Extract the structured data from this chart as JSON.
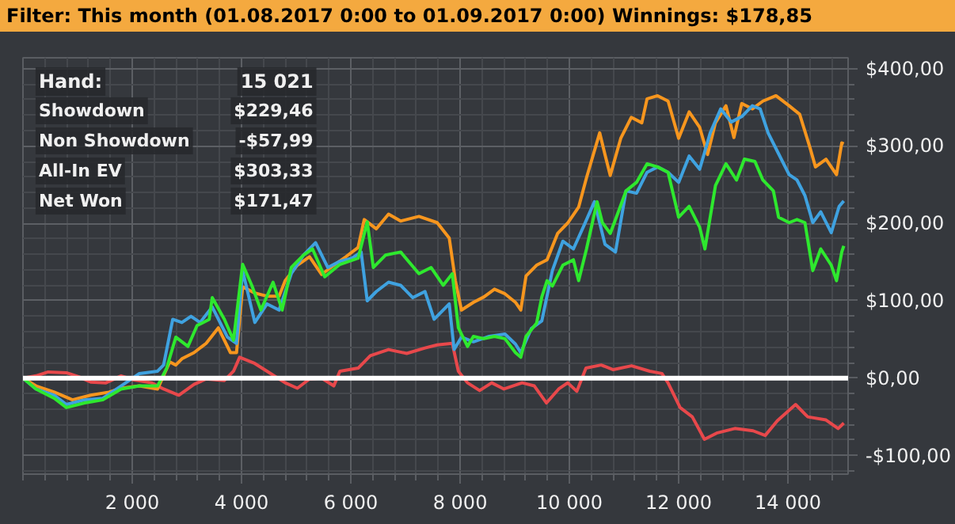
{
  "chart_data": {
    "type": "line",
    "title": "Filter: This month (01.08.2017 0:00 to 01.09.2017 0:00) Winnings: $178,85",
    "annotations": [
      "Hand:",
      "15 021",
      "Showdown",
      "$229,46",
      "Non Showdown",
      "-$57,99",
      "All-In EV",
      "$303,33",
      "Net Won",
      "$171,47"
    ],
    "xlim": [
      0,
      15100
    ],
    "ylim": [
      -124,
      414
    ],
    "xticks": [
      {
        "value": 2000,
        "label": "2 000"
      },
      {
        "value": 4000,
        "label": "4 000"
      },
      {
        "value": 6000,
        "label": "6 000"
      },
      {
        "value": 8000,
        "label": "8 000"
      },
      {
        "value": 10000,
        "label": "10 000"
      },
      {
        "value": 12000,
        "label": "12 000"
      },
      {
        "value": 14000,
        "label": "14 000"
      }
    ],
    "yticks": [
      {
        "value": -100,
        "label": "-$100,00"
      },
      {
        "value": 0,
        "label": "$0,00"
      },
      {
        "value": 100,
        "label": "$100,00"
      },
      {
        "value": 200,
        "label": "$200,00"
      },
      {
        "value": 300,
        "label": "$300,00"
      },
      {
        "value": 400,
        "label": "$400,00"
      }
    ],
    "grid": true,
    "line_style": "solid",
    "ref_lines": [
      {
        "axis": "y",
        "value": 0,
        "color": "#ffffff"
      }
    ],
    "series": [
      {
        "color": "#e8484b",
        "x": [
          0,
          239,
          461,
          795,
          1017,
          1240,
          1518,
          1796,
          2018,
          2352,
          2574,
          2852,
          3130,
          3353,
          3686,
          3853,
          3965,
          4243,
          4466,
          4799,
          5022,
          5244,
          5467,
          5689,
          5800,
          6134,
          6356,
          6690,
          7023,
          7357,
          7579,
          7857,
          7968,
          8135,
          8357,
          8579,
          8802,
          9135,
          9358,
          9580,
          9803,
          9969,
          10136,
          10303,
          10581,
          10803,
          11137,
          11471,
          11693,
          11804,
          12026,
          12249,
          12471,
          12694,
          13027,
          13361,
          13583,
          13806,
          14139,
          14362,
          14695,
          14918,
          15021
        ],
        "values": [
          0,
          3,
          8,
          7,
          2,
          -5,
          -6,
          3,
          -2,
          -6,
          -14,
          -22,
          -8,
          -1,
          -3,
          9,
          27,
          19,
          9,
          -6,
          -13,
          -1,
          0,
          -10,
          9,
          13,
          29,
          37,
          32,
          39,
          43,
          45,
          9,
          -6,
          -16,
          -6,
          -14,
          -6,
          -10,
          -32,
          -14,
          -6,
          -17,
          13,
          17,
          11,
          16,
          9,
          6,
          -6,
          -38,
          -50,
          -79,
          -71,
          -65,
          -68,
          -74,
          -55,
          -34,
          -50,
          -54,
          -65,
          -58
        ]
      },
      {
        "color": "#f7961e",
        "x": [
          0,
          239,
          573,
          906,
          1240,
          1574,
          1796,
          2130,
          2463,
          2686,
          2797,
          2908,
          3130,
          3353,
          3575,
          3797,
          3908,
          4020,
          4243,
          4466,
          4688,
          4799,
          5022,
          5244,
          5467,
          5689,
          5911,
          6134,
          6245,
          6467,
          6690,
          6912,
          7246,
          7579,
          7801,
          7913,
          8024,
          8243,
          8436,
          8628,
          8821,
          9013,
          9110,
          9206,
          9399,
          9591,
          9784,
          9976,
          10169,
          10313,
          10554,
          10651,
          10747,
          10940,
          11132,
          11325,
          11421,
          11614,
          11806,
          11999,
          12191,
          12384,
          12528,
          12673,
          12865,
          13010,
          13154,
          13347,
          13540,
          13780,
          14021,
          14214,
          14406,
          14503,
          14696,
          14888,
          14984,
          15021
        ],
        "values": [
          0,
          -10,
          -18,
          -28,
          -22,
          -18,
          -13,
          -10,
          -14,
          21,
          17,
          25,
          33,
          45,
          65,
          33,
          33,
          118,
          110,
          106,
          106,
          126,
          146,
          157,
          134,
          146,
          157,
          169,
          205,
          193,
          212,
          203,
          209,
          201,
          181,
          126,
          88,
          98,
          105,
          115,
          109,
          98,
          88,
          132,
          146,
          153,
          187,
          201,
          221,
          259,
          317,
          289,
          262,
          310,
          337,
          330,
          361,
          365,
          358,
          310,
          344,
          324,
          289,
          330,
          352,
          311,
          355,
          348,
          358,
          365,
          352,
          341,
          297,
          273,
          283,
          263,
          304,
          303
        ]
      },
      {
        "color": "#3fa2e0",
        "x": [
          0,
          239,
          573,
          795,
          1129,
          1462,
          1796,
          2130,
          2463,
          2574,
          2741,
          2908,
          3075,
          3241,
          3464,
          3742,
          3908,
          4020,
          4243,
          4466,
          4688,
          4910,
          5133,
          5355,
          5578,
          5800,
          6022,
          6189,
          6300,
          6467,
          6690,
          6912,
          7134,
          7357,
          7524,
          7801,
          7890,
          8024,
          8243,
          8532,
          8821,
          9013,
          9110,
          9302,
          9495,
          9688,
          9880,
          10073,
          10265,
          10458,
          10651,
          10843,
          11036,
          11228,
          11421,
          11614,
          11806,
          11999,
          12191,
          12384,
          12577,
          12769,
          12962,
          13154,
          13347,
          13491,
          13636,
          13828,
          14021,
          14165,
          14310,
          14454,
          14599,
          14792,
          14936,
          15021
        ],
        "values": [
          0,
          -14,
          -22,
          -34,
          -28,
          -26,
          -10,
          6,
          9,
          17,
          76,
          72,
          80,
          72,
          92,
          53,
          45,
          139,
          72,
          96,
          88,
          135,
          159,
          175,
          143,
          151,
          155,
          163,
          100,
          112,
          124,
          120,
          104,
          112,
          76,
          96,
          37,
          53,
          47,
          54,
          57,
          44,
          33,
          64,
          74,
          139,
          177,
          167,
          197,
          228,
          173,
          163,
          242,
          239,
          266,
          273,
          266,
          253,
          287,
          270,
          317,
          348,
          331,
          338,
          352,
          348,
          317,
          290,
          263,
          256,
          236,
          201,
          215,
          188,
          222,
          229
        ]
      },
      {
        "color": "#2ee82e",
        "x": [
          0,
          239,
          573,
          795,
          1129,
          1462,
          1796,
          2130,
          2463,
          2630,
          2797,
          3019,
          3186,
          3408,
          3464,
          3686,
          3853,
          4020,
          4187,
          4354,
          4577,
          4743,
          4910,
          5133,
          5299,
          5522,
          5800,
          6134,
          6300,
          6412,
          6634,
          6912,
          7246,
          7468,
          7690,
          7857,
          7968,
          8135,
          8243,
          8436,
          8628,
          8821,
          9013,
          9110,
          9206,
          9399,
          9495,
          9591,
          9688,
          9880,
          10073,
          10169,
          10313,
          10506,
          10603,
          10747,
          10891,
          11036,
          11228,
          11421,
          11614,
          11806,
          11999,
          12191,
          12384,
          12480,
          12673,
          12865,
          13058,
          13202,
          13395,
          13540,
          13732,
          13828,
          14021,
          14165,
          14310,
          14454,
          14599,
          14792,
          14888,
          14984,
          15021
        ],
        "values": [
          0,
          -14,
          -26,
          -38,
          -32,
          -28,
          -14,
          -10,
          -10,
          13,
          53,
          41,
          68,
          76,
          104,
          76,
          49,
          147,
          120,
          88,
          124,
          88,
          143,
          159,
          167,
          131,
          147,
          155,
          202,
          143,
          159,
          163,
          135,
          143,
          120,
          135,
          65,
          41,
          54,
          51,
          54,
          51,
          33,
          27,
          54,
          71,
          105,
          126,
          119,
          146,
          153,
          126,
          167,
          228,
          201,
          187,
          214,
          242,
          253,
          277,
          273,
          266,
          208,
          222,
          195,
          167,
          249,
          277,
          256,
          283,
          280,
          256,
          242,
          208,
          201,
          205,
          201,
          139,
          167,
          146,
          126,
          163,
          171
        ]
      }
    ]
  }
}
